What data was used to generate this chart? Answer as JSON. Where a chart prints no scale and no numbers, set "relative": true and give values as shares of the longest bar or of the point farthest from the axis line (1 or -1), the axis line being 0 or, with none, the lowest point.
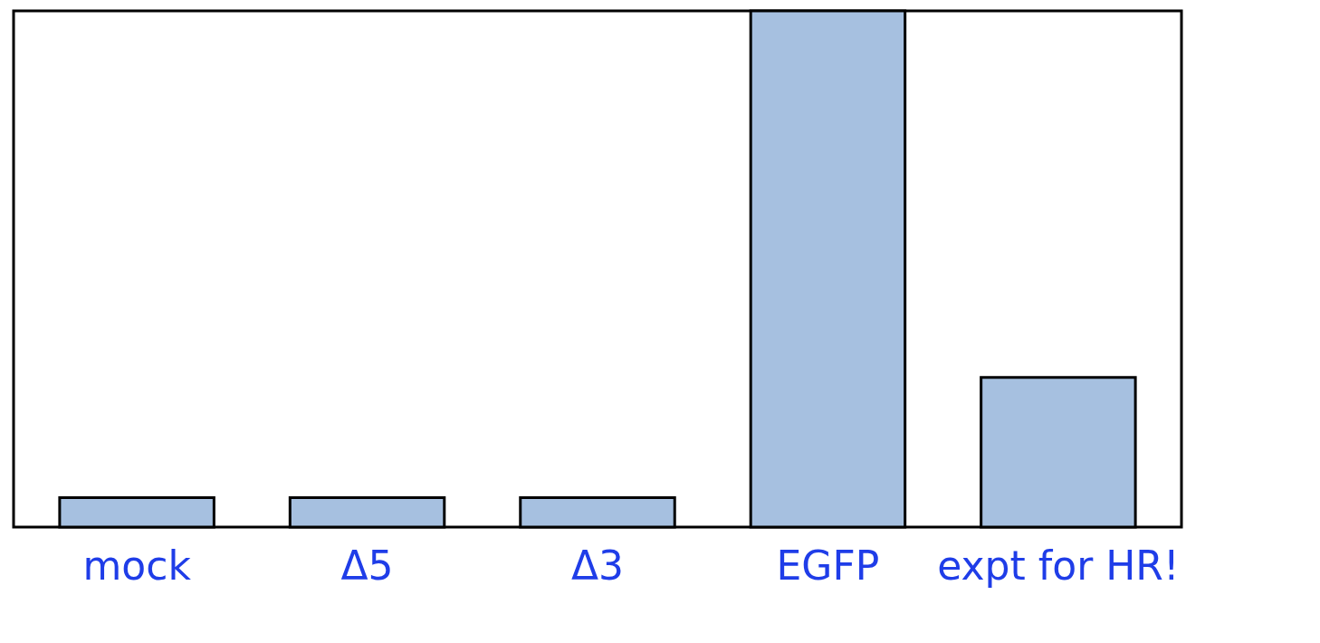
{
  "chart_data": {
    "type": "bar",
    "relative": true,
    "categories": [
      "mock",
      "Δ5",
      "Δ3",
      "EGFP",
      "expt for HR!"
    ],
    "values": [
      0.057,
      0.057,
      0.057,
      1,
      0.29
    ],
    "color": "#a6c0e0",
    "grid": false
  }
}
